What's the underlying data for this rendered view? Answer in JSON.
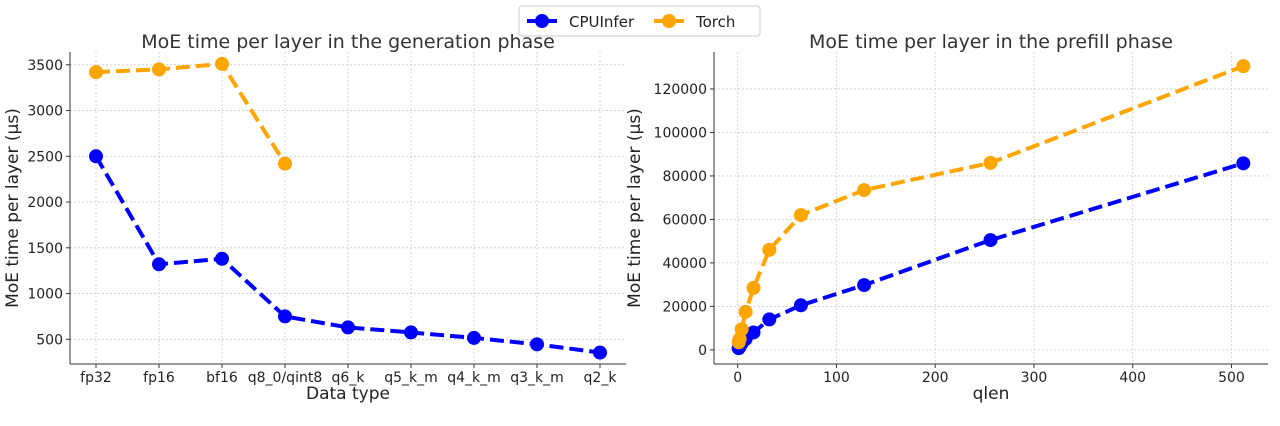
{
  "legend": {
    "placement": "top-center",
    "entries": [
      {
        "name": "CPUInfer",
        "color": "#0000ff"
      },
      {
        "name": "Torch",
        "color": "#ffa500"
      }
    ]
  },
  "chart_data": [
    {
      "type": "line",
      "title": "MoE time per layer in the generation phase",
      "xlabel": "Data type",
      "ylabel": "MoE time per layer (μs)",
      "categories": [
        "fp32",
        "fp16",
        "bf16",
        "q8_0/qint8",
        "q6_k",
        "q5_k_m",
        "q4_k_m",
        "q3_k_m",
        "q2_k"
      ],
      "yticks": [
        500,
        1000,
        1500,
        2000,
        2500,
        3000,
        3500
      ],
      "ylim": [
        230,
        3640
      ],
      "grid": true,
      "series": [
        {
          "name": "CPUInfer",
          "color": "#0000ff",
          "values": [
            2500,
            1320,
            1380,
            750,
            630,
            575,
            515,
            445,
            355
          ]
        },
        {
          "name": "Torch",
          "color": "#ffa500",
          "values": [
            3420,
            3450,
            3510,
            2420,
            null,
            null,
            null,
            null,
            null
          ]
        }
      ]
    },
    {
      "type": "line",
      "title": "MoE time per layer in the prefill phase",
      "xlabel": "qlen",
      "ylabel": "MoE time per layer (μs)",
      "x": [
        1,
        2,
        4,
        8,
        16,
        32,
        64,
        128,
        256,
        512
      ],
      "xticks": [
        0,
        100,
        200,
        300,
        400,
        500
      ],
      "yticks": [
        0,
        20000,
        40000,
        60000,
        80000,
        100000,
        120000
      ],
      "xlim": [
        -24,
        537
      ],
      "ylim": [
        -6500,
        137000
      ],
      "grid": true,
      "series": [
        {
          "name": "CPUInfer",
          "color": "#0000ff",
          "values": [
            800,
            1500,
            3000,
            5000,
            8000,
            14000,
            20500,
            29800,
            50500,
            85800
          ]
        },
        {
          "name": "Torch",
          "color": "#ffa500",
          "values": [
            3500,
            5000,
            9500,
            17500,
            28500,
            46000,
            62000,
            73500,
            86000,
            130500
          ]
        }
      ]
    }
  ]
}
